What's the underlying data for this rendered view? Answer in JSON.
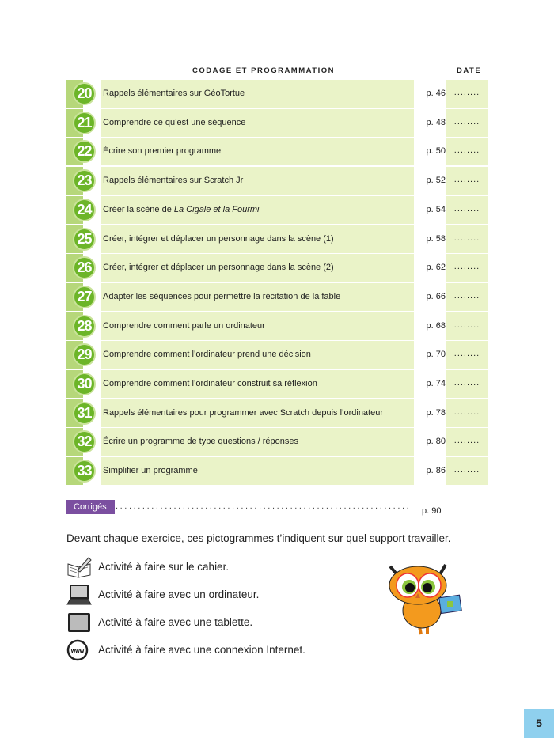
{
  "header": {
    "section": "CODAGE ET PROGRAMMATION",
    "date": "DATE"
  },
  "rows": [
    {
      "num": "20",
      "title": "Rappels élémentaires sur GéoTortue",
      "page": "p. 46",
      "date": "........"
    },
    {
      "num": "21",
      "title": "Comprendre ce qu’est une séquence",
      "page": "p. 48",
      "date": "........"
    },
    {
      "num": "22",
      "title": "Écrire son premier programme",
      "page": "p. 50",
      "date": "........"
    },
    {
      "num": "23",
      "title": "Rappels élémentaires sur Scratch Jr",
      "page": "p. 52",
      "date": "........"
    },
    {
      "num": "24",
      "title": "Créer la scène de ",
      "title_italic": "La Cigale et la Fourmi",
      "page": "p. 54",
      "date": "........"
    },
    {
      "num": "25",
      "title": "Créer, intégrer et déplacer un personnage dans la scène (1)",
      "page": "p. 58",
      "date": "........"
    },
    {
      "num": "26",
      "title": "Créer, intégrer et déplacer un personnage dans la scène (2)",
      "page": "p. 62",
      "date": "........"
    },
    {
      "num": "27",
      "title": "Adapter les séquences pour permettre la récitation de la fable",
      "page": "p. 66",
      "date": "........"
    },
    {
      "num": "28",
      "title": "Comprendre comment parle un ordinateur",
      "page": "p. 68",
      "date": "........"
    },
    {
      "num": "29",
      "title": "Comprendre comment l’ordinateur prend une décision",
      "page": "p. 70",
      "date": "........"
    },
    {
      "num": "30",
      "title": "Comprendre comment l’ordinateur construit sa réflexion",
      "page": "p. 74",
      "date": "........"
    },
    {
      "num": "31",
      "title": "Rappels élémentaires pour programmer avec Scratch depuis l’ordinateur",
      "page": "p. 78",
      "date": "........"
    },
    {
      "num": "32",
      "title": "Écrire un programme de type questions / réponses",
      "page": "p. 80",
      "date": "........"
    },
    {
      "num": "33",
      "title": "Simplifier un programme",
      "page": "p. 86",
      "date": "........"
    }
  ],
  "corriges": {
    "label": "Corrigés",
    "dots": "..........................................................................",
    "page": "p. 90"
  },
  "intro": "Devant chaque exercice, ces pictogrammes t’indiquent sur quel support travailler.",
  "legend": [
    {
      "icon": "notebook-pen-icon",
      "text": "Activité à faire sur le cahier."
    },
    {
      "icon": "laptop-icon",
      "text": "Activité à faire avec un ordinateur."
    },
    {
      "icon": "tablet-icon",
      "text": "Activité à faire avec une tablette."
    },
    {
      "icon": "www-globe-icon",
      "text": "Activité à faire avec une connexion Internet."
    }
  ],
  "page_number": "5",
  "colors": {
    "green": "#6cb528",
    "row_bg": "#eaf3c8",
    "purple": "#7b4fa0",
    "blue": "#8fd0ee"
  }
}
